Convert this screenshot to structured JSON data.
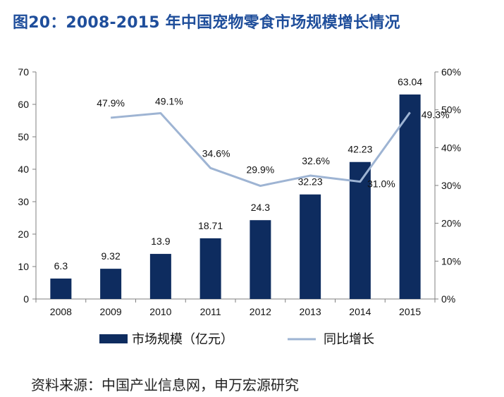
{
  "title": "图20：2008-2015 年中国宠物零食市场规模增长情况",
  "source": "资料来源：中国产业信息网，申万宏源研究",
  "colors": {
    "bar": "#0e2c5f",
    "line": "#9eb4d3",
    "title": "#1f4e9b"
  },
  "chart_data": {
    "type": "bar",
    "categories": [
      "2008",
      "2009",
      "2010",
      "2011",
      "2012",
      "2013",
      "2014",
      "2015"
    ],
    "series": [
      {
        "name": "市场规模（亿元）",
        "type": "bar",
        "axis": "left",
        "values": [
          6.3,
          9.32,
          13.9,
          18.71,
          24.3,
          32.23,
          42.23,
          63.04
        ],
        "labels": [
          "6.3",
          "9.32",
          "13.9",
          "18.71",
          "24.3",
          "32.23",
          "42.23",
          "63.04"
        ]
      },
      {
        "name": "同比增长",
        "type": "line",
        "axis": "right",
        "values": [
          null,
          47.9,
          49.1,
          34.6,
          29.9,
          32.6,
          31.0,
          49.3
        ],
        "labels": [
          null,
          "47.9%",
          "49.1%",
          "34.6%",
          "29.9%",
          "32.6%",
          "31.0%",
          "49.3%"
        ]
      }
    ],
    "y_left": {
      "ylim": [
        0,
        70
      ],
      "ticks": [
        "0",
        "10",
        "20",
        "30",
        "40",
        "50",
        "60",
        "70"
      ]
    },
    "y_right": {
      "ylim": [
        0,
        60
      ],
      "ticks": [
        "0%",
        "10%",
        "20%",
        "30%",
        "40%",
        "50%",
        "60%"
      ]
    },
    "grid": false,
    "legend": "bottom"
  }
}
